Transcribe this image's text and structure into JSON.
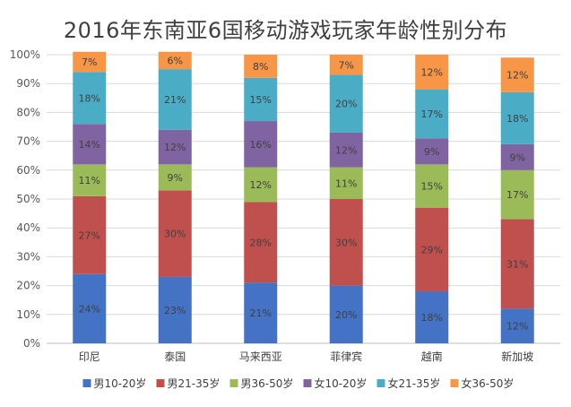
{
  "chart_data": {
    "type": "bar",
    "stacked": true,
    "title": "2016年东南亚6国移动游戏玩家年龄性别分布",
    "xlabel": "",
    "ylabel": "",
    "ylim": [
      0,
      100
    ],
    "y_ticks": [
      "0%",
      "10%",
      "20%",
      "30%",
      "40%",
      "50%",
      "60%",
      "70%",
      "80%",
      "90%",
      "100%"
    ],
    "categories": [
      "印尼",
      "泰国",
      "马来西亚",
      "菲律宾",
      "越南",
      "新加坡"
    ],
    "legend_position": "bottom",
    "series": [
      {
        "name": "男10-20岁",
        "color": "#4472C4",
        "values": [
          24,
          23,
          21,
          20,
          18,
          12
        ]
      },
      {
        "name": "男21-35岁",
        "color": "#C0504D",
        "values": [
          27,
          30,
          28,
          30,
          29,
          31
        ]
      },
      {
        "name": "男36-50岁",
        "color": "#9BBB59",
        "values": [
          11,
          9,
          12,
          11,
          15,
          17
        ]
      },
      {
        "name": "女10-20岁",
        "color": "#8064A2",
        "values": [
          14,
          12,
          16,
          12,
          9,
          9
        ]
      },
      {
        "name": "女21-35岁",
        "color": "#4BACC6",
        "values": [
          18,
          21,
          15,
          20,
          17,
          18
        ]
      },
      {
        "name": "女36-50岁",
        "color": "#F79646",
        "values": [
          7,
          6,
          8,
          7,
          12,
          12
        ]
      }
    ],
    "grid": true
  }
}
